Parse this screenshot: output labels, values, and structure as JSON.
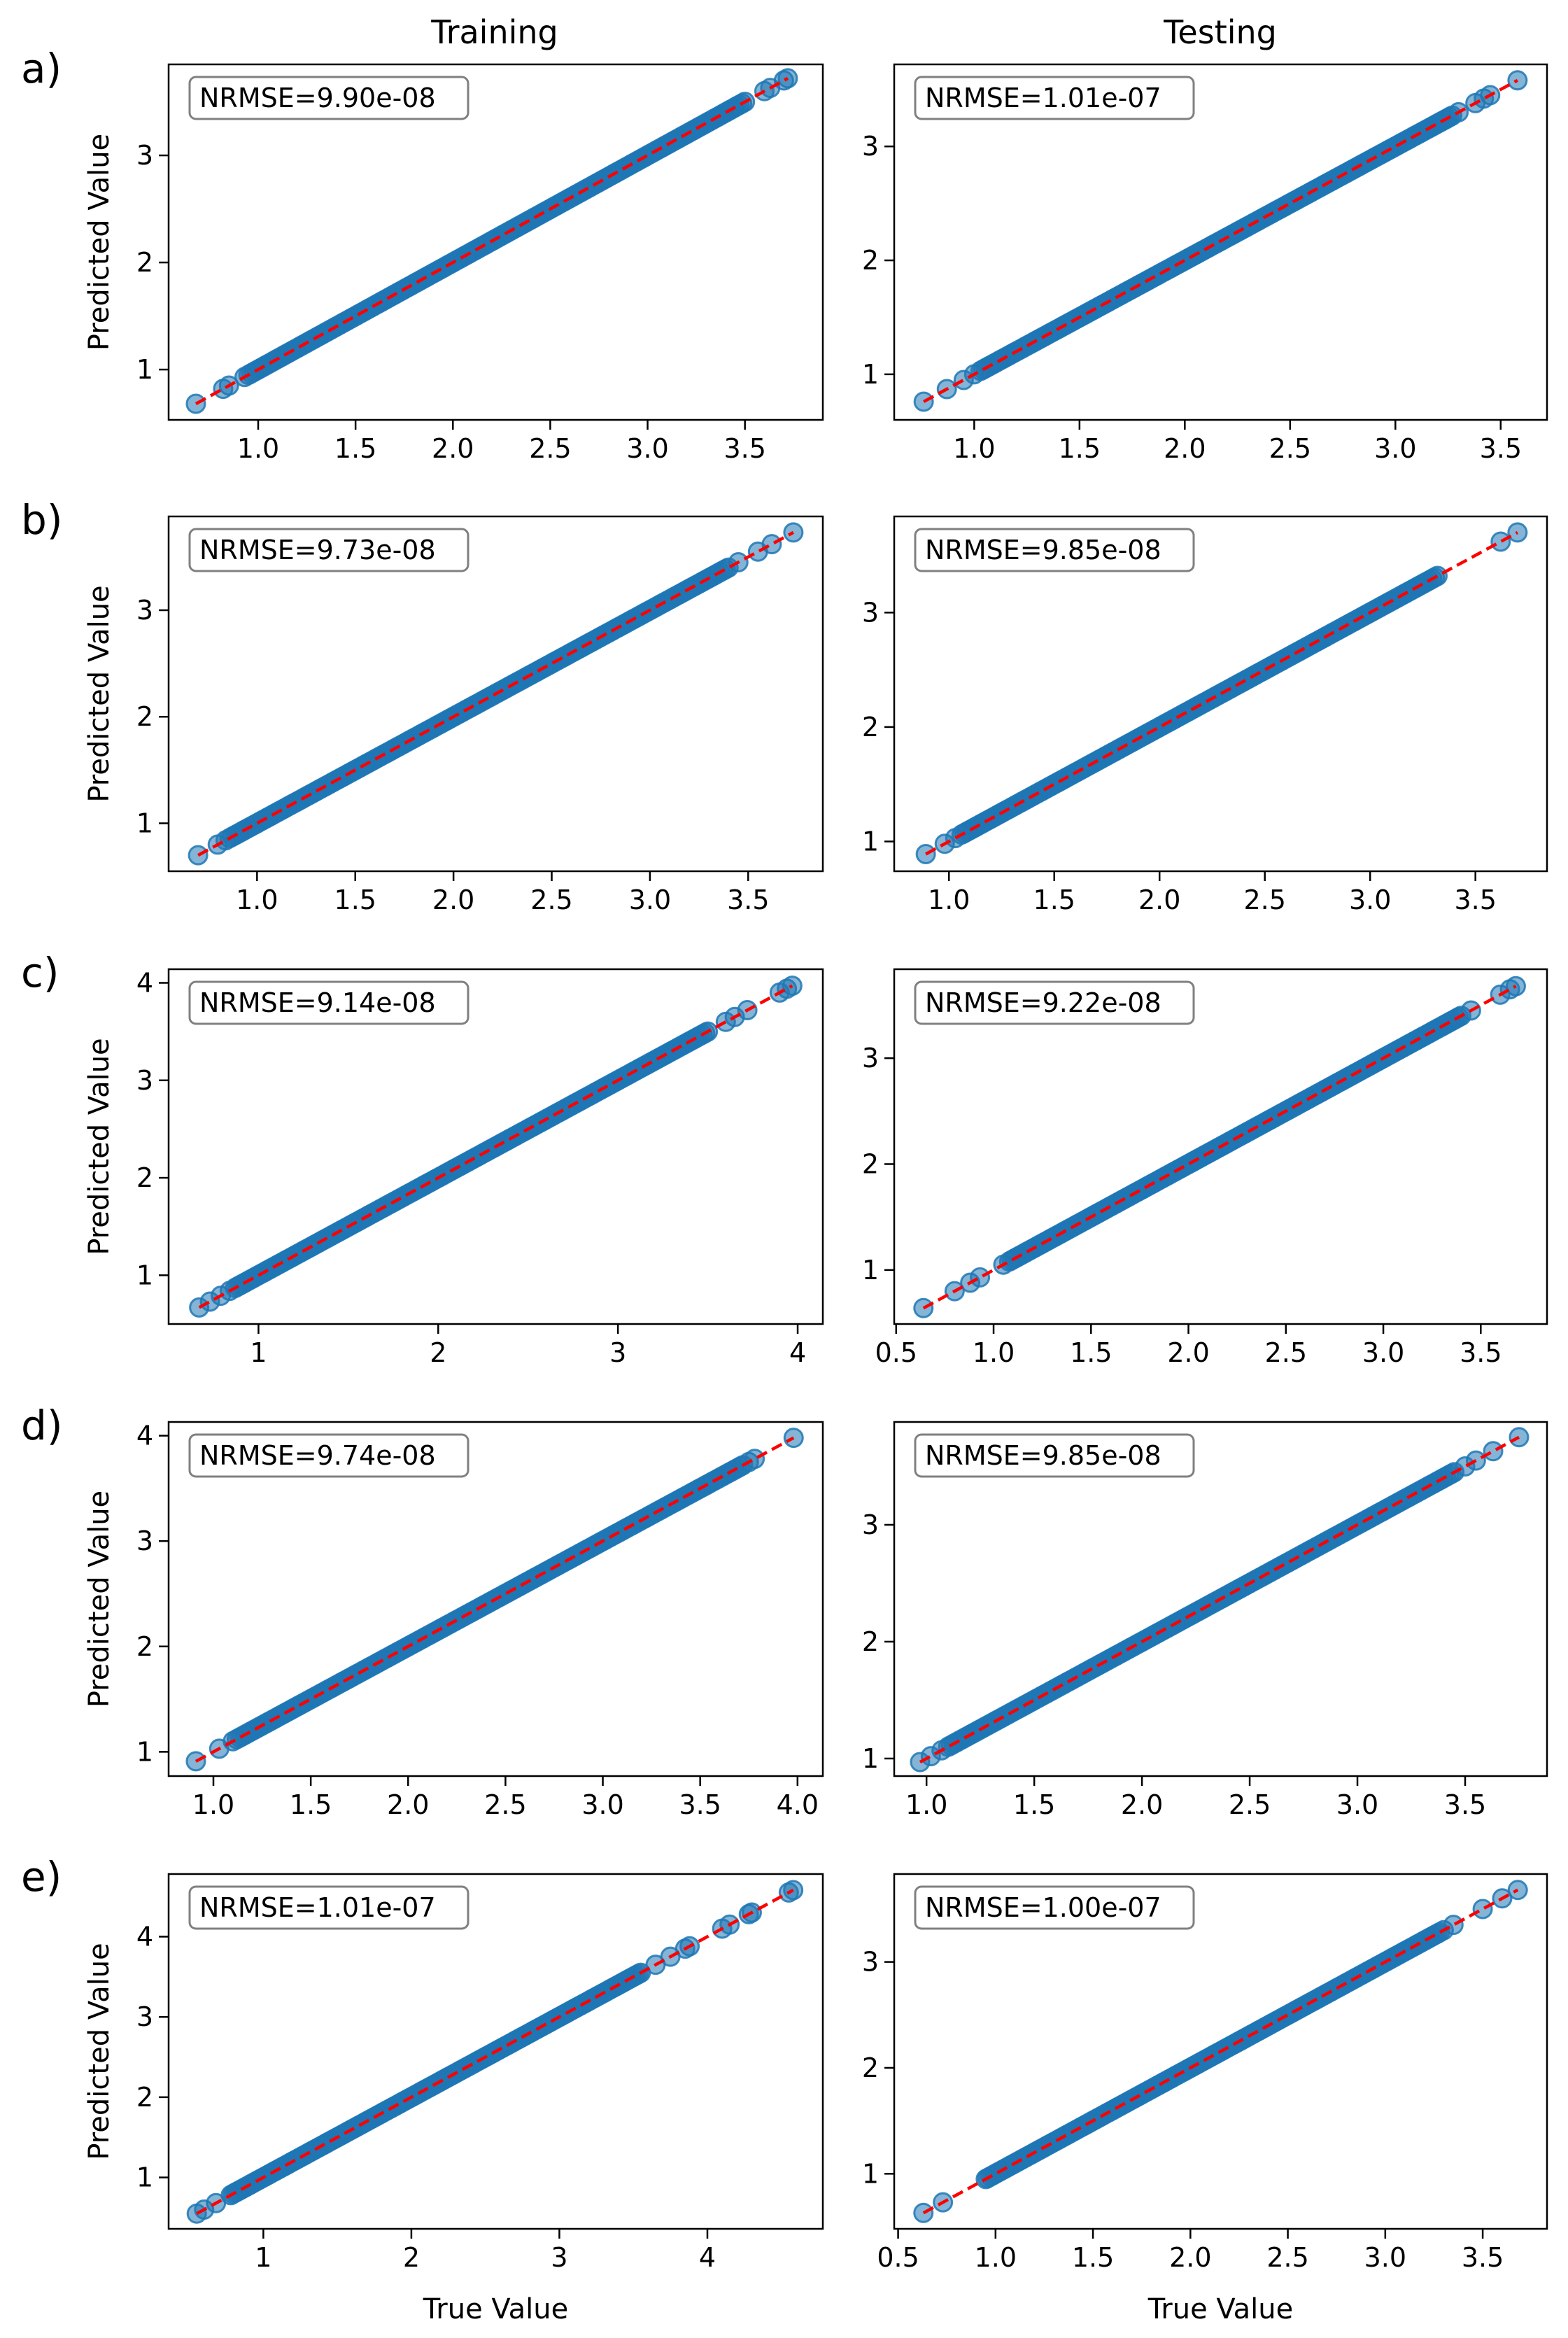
{
  "figure": {
    "column_titles": [
      "Training",
      "Testing"
    ],
    "x_axis_label": "True Value",
    "y_axis_label": "Predicted Value",
    "colors": {
      "points": "#1f77b4",
      "point_edge": "#1f77b4",
      "fit_line": "#ff0000",
      "axes": "#000000",
      "annotation_border": "#808080"
    }
  },
  "chart_data": [
    {
      "row": "a)",
      "column": "Training",
      "type": "scatter",
      "annotation": "NRMSE=9.90e-08",
      "xlim": [
        0.54,
        3.9
      ],
      "ylim": [
        0.53,
        3.85
      ],
      "xticks": [
        1.0,
        1.5,
        2.0,
        2.5,
        3.0,
        3.5
      ],
      "xticklabels": [
        "1.0",
        "1.5",
        "2.0",
        "2.5",
        "3.0",
        "3.5"
      ],
      "yticks": [
        1,
        2,
        3
      ],
      "yticklabels": [
        "1",
        "2",
        "3"
      ],
      "range": [
        0.68,
        3.72
      ],
      "isolated": [
        0.68,
        0.82,
        0.85,
        0.93,
        3.6,
        3.63,
        3.7,
        3.72
      ],
      "dense": [
        0.95,
        3.5
      ]
    },
    {
      "row": "a)",
      "column": "Testing",
      "type": "scatter",
      "annotation": "NRMSE=1.01e-07",
      "xlim": [
        0.62,
        3.72
      ],
      "ylim": [
        0.6,
        3.72
      ],
      "xticks": [
        1.0,
        1.5,
        2.0,
        2.5,
        3.0,
        3.5
      ],
      "xticklabels": [
        "1.0",
        "1.5",
        "2.0",
        "2.5",
        "3.0",
        "3.5"
      ],
      "yticks": [
        1,
        2,
        3
      ],
      "yticklabels": [
        "1",
        "2",
        "3"
      ],
      "range": [
        0.76,
        3.58
      ],
      "isolated": [
        0.76,
        0.87,
        0.95,
        1.0,
        3.3,
        3.38,
        3.42,
        3.45,
        3.58
      ],
      "dense": [
        1.03,
        3.27
      ]
    },
    {
      "row": "b)",
      "column": "Training",
      "type": "scatter",
      "annotation": "NRMSE=9.73e-08",
      "xlim": [
        0.55,
        3.88
      ],
      "ylim": [
        0.55,
        3.88
      ],
      "xticks": [
        1.0,
        1.5,
        2.0,
        2.5,
        3.0,
        3.5
      ],
      "xticklabels": [
        "1.0",
        "1.5",
        "2.0",
        "2.5",
        "3.0",
        "3.5"
      ],
      "yticks": [
        1,
        2,
        3
      ],
      "yticklabels": [
        "1",
        "2",
        "3"
      ],
      "range": [
        0.7,
        3.73
      ],
      "isolated": [
        0.7,
        0.8,
        0.84,
        3.45,
        3.55,
        3.62,
        3.73
      ],
      "dense": [
        0.86,
        3.4
      ]
    },
    {
      "row": "b)",
      "column": "Testing",
      "type": "scatter",
      "annotation": "NRMSE=9.85e-08",
      "xlim": [
        0.74,
        3.84
      ],
      "ylim": [
        0.74,
        3.84
      ],
      "xticks": [
        1.0,
        1.5,
        2.0,
        2.5,
        3.0,
        3.5
      ],
      "xticklabels": [
        "1.0",
        "1.5",
        "2.0",
        "2.5",
        "3.0",
        "3.5"
      ],
      "yticks": [
        1,
        2,
        3
      ],
      "yticklabels": [
        "1",
        "2",
        "3"
      ],
      "range": [
        0.89,
        3.7
      ],
      "isolated": [
        0.89,
        0.98,
        1.03,
        3.62,
        3.7
      ],
      "dense": [
        1.06,
        3.32
      ]
    },
    {
      "row": "c)",
      "column": "Training",
      "type": "scatter",
      "annotation": "NRMSE=9.14e-08",
      "xlim": [
        0.5,
        4.14
      ],
      "ylim": [
        0.5,
        4.14
      ],
      "xticks": [
        1,
        2,
        3,
        4
      ],
      "xticklabels": [
        "1",
        "2",
        "3",
        "4"
      ],
      "yticks": [
        1,
        2,
        3,
        4
      ],
      "yticklabels": [
        "1",
        "2",
        "3",
        "4"
      ],
      "range": [
        0.67,
        3.97
      ],
      "isolated": [
        0.67,
        0.73,
        0.79,
        0.84,
        3.6,
        3.65,
        3.72,
        3.9,
        3.94,
        3.97
      ],
      "dense": [
        0.87,
        3.5
      ]
    },
    {
      "row": "c)",
      "column": "Testing",
      "type": "scatter",
      "annotation": "NRMSE=9.22e-08",
      "xlim": [
        0.49,
        3.84
      ],
      "ylim": [
        0.49,
        3.84
      ],
      "xticks": [
        0.5,
        1.0,
        1.5,
        2.0,
        2.5,
        3.0,
        3.5
      ],
      "xticklabels": [
        "0.5",
        "1.0",
        "1.5",
        "2.0",
        "2.5",
        "3.0",
        "3.5"
      ],
      "yticks": [
        1,
        2,
        3
      ],
      "yticklabels": [
        "1",
        "2",
        "3"
      ],
      "range": [
        0.64,
        3.68
      ],
      "isolated": [
        0.64,
        0.8,
        0.88,
        0.93,
        1.05,
        3.45,
        3.6,
        3.65,
        3.68
      ],
      "dense": [
        1.08,
        3.4
      ]
    },
    {
      "row": "d)",
      "column": "Training",
      "type": "scatter",
      "annotation": "NRMSE=9.74e-08",
      "xlim": [
        0.77,
        4.13
      ],
      "ylim": [
        0.77,
        4.13
      ],
      "xticks": [
        1.0,
        1.5,
        2.0,
        2.5,
        3.0,
        3.5,
        4.0
      ],
      "xticklabels": [
        "1.0",
        "1.5",
        "2.0",
        "2.5",
        "3.0",
        "3.5",
        "4.0"
      ],
      "yticks": [
        1,
        2,
        3,
        4
      ],
      "yticklabels": [
        "1",
        "2",
        "3",
        "4"
      ],
      "range": [
        0.91,
        3.98
      ],
      "isolated": [
        0.91,
        1.03,
        1.1,
        3.75,
        3.78,
        3.98
      ],
      "dense": [
        1.12,
        3.72
      ]
    },
    {
      "row": "d)",
      "column": "Testing",
      "type": "scatter",
      "annotation": "NRMSE=9.85e-08",
      "xlim": [
        0.85,
        3.88
      ],
      "ylim": [
        0.85,
        3.88
      ],
      "xticks": [
        1.0,
        1.5,
        2.0,
        2.5,
        3.0,
        3.5
      ],
      "xticklabels": [
        "1.0",
        "1.5",
        "2.0",
        "2.5",
        "3.0",
        "3.5"
      ],
      "yticks": [
        1,
        2,
        3
      ],
      "yticklabels": [
        "1",
        "2",
        "3"
      ],
      "range": [
        0.97,
        3.75
      ],
      "isolated": [
        0.97,
        1.02,
        1.07,
        3.5,
        3.55,
        3.63,
        3.75
      ],
      "dense": [
        1.1,
        3.45
      ]
    },
    {
      "row": "e)",
      "column": "Training",
      "type": "scatter",
      "annotation": "NRMSE=1.01e-07",
      "xlim": [
        0.36,
        4.78
      ],
      "ylim": [
        0.36,
        4.78
      ],
      "xticks": [
        1,
        2,
        3,
        4
      ],
      "xticklabels": [
        "1",
        "2",
        "3",
        "4"
      ],
      "yticks": [
        1,
        2,
        3,
        4
      ],
      "yticklabels": [
        "1",
        "2",
        "3",
        "4"
      ],
      "range": [
        0.55,
        4.58
      ],
      "isolated": [
        0.55,
        0.6,
        0.68,
        3.65,
        3.75,
        3.85,
        3.88,
        4.1,
        4.15,
        4.28,
        4.3,
        4.55,
        4.58
      ],
      "dense": [
        0.78,
        3.55
      ]
    },
    {
      "row": "e)",
      "column": "Testing",
      "type": "scatter",
      "annotation": "NRMSE=1.00e-07",
      "xlim": [
        0.48,
        3.83
      ],
      "ylim": [
        0.48,
        3.83
      ],
      "xticks": [
        0.5,
        1.0,
        1.5,
        2.0,
        2.5,
        3.0,
        3.5
      ],
      "xticklabels": [
        "0.5",
        "1.0",
        "1.5",
        "2.0",
        "2.5",
        "3.0",
        "3.5"
      ],
      "yticks": [
        1,
        2,
        3
      ],
      "yticklabels": [
        "1",
        "2",
        "3"
      ],
      "range": [
        0.63,
        3.68
      ],
      "isolated": [
        0.63,
        0.73,
        0.95,
        3.3,
        3.35,
        3.5,
        3.6,
        3.68
      ],
      "dense": [
        0.96,
        3.28
      ]
    }
  ]
}
